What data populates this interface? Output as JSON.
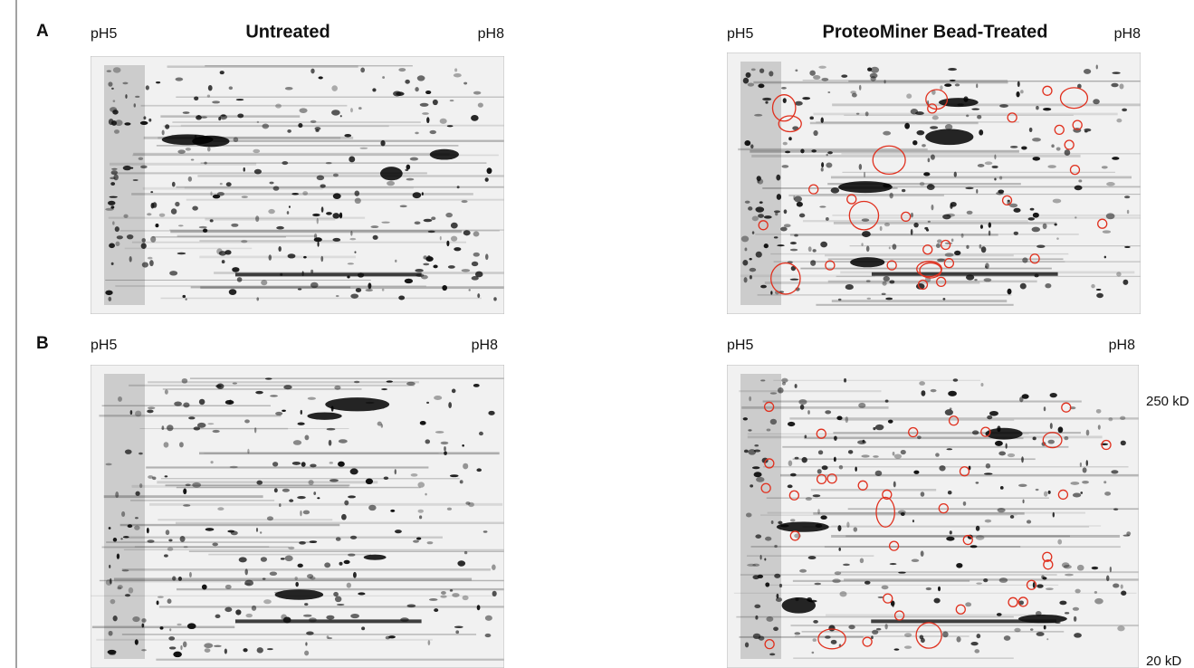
{
  "panels": [
    {
      "label": "A",
      "gels": [
        {
          "title": "Untreated",
          "left_ph": "pH5",
          "right_ph": "pH8"
        },
        {
          "title": "ProteoMiner Bead-Treated",
          "left_ph": "pH5",
          "right_ph": "pH8"
        }
      ]
    },
    {
      "label": "B",
      "gels": [
        {
          "left_ph": "pH5",
          "right_ph": "pH8"
        },
        {
          "left_ph": "pH5",
          "right_ph": "pH8",
          "markers": [
            "250 kD",
            "20 kD"
          ]
        }
      ]
    }
  ]
}
